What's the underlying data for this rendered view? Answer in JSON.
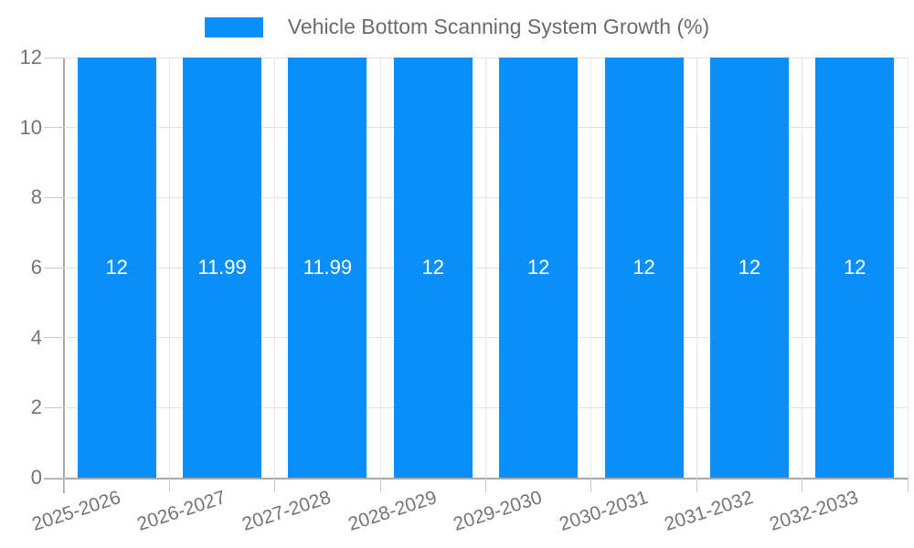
{
  "chart_data": {
    "type": "bar",
    "title": "Vehicle Bottom Scanning System Growth (%)",
    "categories": [
      "2025-2026",
      "2026-2027",
      "2027-2028",
      "2028-2029",
      "2029-2030",
      "2030-2031",
      "2031-2032",
      "2032-2033"
    ],
    "series": [
      {
        "name": "Vehicle Bottom Scanning System Growth (%)",
        "values": [
          12,
          11.99,
          11.99,
          12,
          12,
          12,
          12,
          12
        ]
      }
    ],
    "bar_labels": [
      "12",
      "11.99",
      "11.99",
      "12",
      "12",
      "12",
      "12",
      "12"
    ],
    "xlabel": "",
    "ylabel": "",
    "ylim": [
      0,
      12
    ],
    "yticks": [
      0,
      2,
      4,
      6,
      8,
      10,
      12
    ],
    "grid": true,
    "legend_position": "top",
    "colors": {
      "bar": "#0a8ff8",
      "bar_label": "#ffffff",
      "grid": "#e2e2e2",
      "vgrid": "#e9e9e9",
      "axis": "#a8a8a8",
      "tick_mark": "#c9c9c9",
      "tick_text": "#757575",
      "title_text": "#6b6b6b",
      "background": "#ffffff"
    }
  }
}
